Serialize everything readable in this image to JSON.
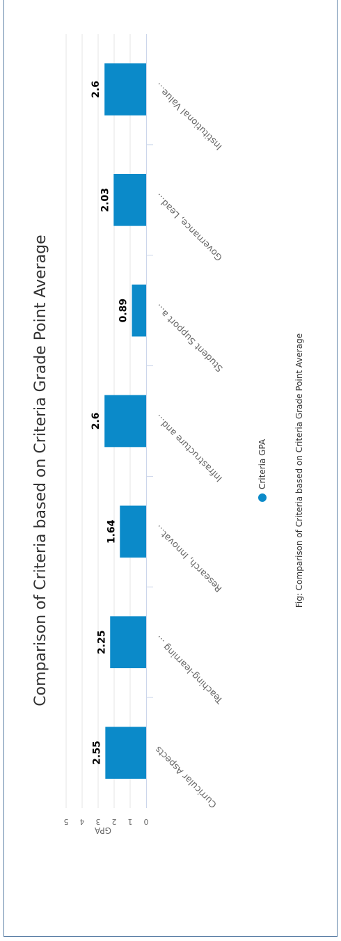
{
  "chart_data": {
    "type": "bar",
    "title": "Comparison of Criteria based on Criteria Grade Point Average",
    "caption": "Fig: Comparison of Criteria based on Criteria Grade Point Average",
    "ylabel": "GPA",
    "xlabel": "",
    "ylim": [
      0,
      5
    ],
    "yticks": [
      "0",
      "1",
      "2",
      "3",
      "4",
      "5"
    ],
    "categories": [
      "Curricular Aspects",
      "Teaching-learning ...",
      "Research, Innovat...",
      "Infrastructure and...",
      "Student Support a...",
      "Governance, Lead...",
      "Institutional Value..."
    ],
    "series": [
      {
        "name": "Criteria GPA",
        "values": [
          2.55,
          2.25,
          1.64,
          2.6,
          0.89,
          2.03,
          2.6
        ],
        "color": "#0b8ac9"
      }
    ],
    "data_labels": [
      "2.55",
      "2.25",
      "1.64",
      "2.6",
      "0.89",
      "2.03",
      "2.6"
    ],
    "grid": true,
    "legend_position": "bottom",
    "orientation": "rotated-90"
  }
}
